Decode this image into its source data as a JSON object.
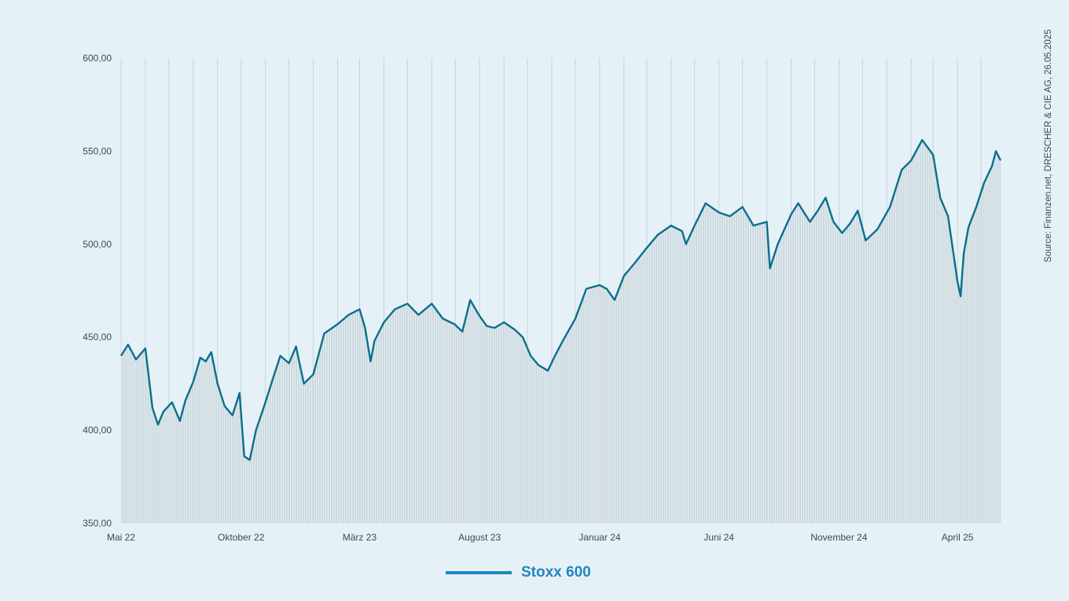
{
  "chart_data": {
    "type": "line",
    "title": "",
    "xlabel": "",
    "ylabel": "",
    "ylim": [
      350,
      600
    ],
    "y_ticks": [
      "350,00",
      "400,00",
      "450,00",
      "500,00",
      "550,00",
      "600,00"
    ],
    "y_tick_values": [
      350,
      400,
      450,
      500,
      550,
      600
    ],
    "x_ticks": [
      "Mai 22",
      "Oktober 22",
      "März 23",
      "August 23",
      "Januar 24",
      "Juni 24",
      "November 24",
      "April 25"
    ],
    "x_tick_dates": [
      "2022-05-01",
      "2022-10-01",
      "2023-03-01",
      "2023-08-01",
      "2024-01-01",
      "2024-06-01",
      "2024-11-01",
      "2025-04-01"
    ],
    "x_range": [
      "2022-05-01",
      "2025-05-26"
    ],
    "grid": "vertical monthly lines",
    "legend_position": "bottom-center",
    "series": [
      {
        "name": "Stoxx 600",
        "color": "#0b6f8c",
        "fill_color": "#c9d6dc",
        "x": [
          "2022-05-01",
          "2022-05-10",
          "2022-05-20",
          "2022-06-01",
          "2022-06-10",
          "2022-06-17",
          "2022-06-24",
          "2022-07-05",
          "2022-07-15",
          "2022-07-22",
          "2022-08-01",
          "2022-08-10",
          "2022-08-17",
          "2022-08-24",
          "2022-09-01",
          "2022-09-10",
          "2022-09-20",
          "2022-09-29",
          "2022-10-05",
          "2022-10-12",
          "2022-10-20",
          "2022-11-01",
          "2022-11-10",
          "2022-11-20",
          "2022-12-01",
          "2022-12-10",
          "2022-12-20",
          "2023-01-01",
          "2023-01-15",
          "2023-02-01",
          "2023-02-15",
          "2023-03-01",
          "2023-03-08",
          "2023-03-15",
          "2023-03-20",
          "2023-04-01",
          "2023-04-15",
          "2023-05-01",
          "2023-05-15",
          "2023-06-01",
          "2023-06-15",
          "2023-06-30",
          "2023-07-10",
          "2023-07-20",
          "2023-07-31",
          "2023-08-10",
          "2023-08-20",
          "2023-09-01",
          "2023-09-15",
          "2023-09-25",
          "2023-10-05",
          "2023-10-15",
          "2023-10-27",
          "2023-11-05",
          "2023-11-15",
          "2023-12-01",
          "2023-12-15",
          "2024-01-01",
          "2024-01-10",
          "2024-01-20",
          "2024-02-01",
          "2024-02-15",
          "2024-03-01",
          "2024-03-15",
          "2024-04-01",
          "2024-04-15",
          "2024-04-20",
          "2024-05-01",
          "2024-05-15",
          "2024-06-01",
          "2024-06-15",
          "2024-07-01",
          "2024-07-15",
          "2024-08-01",
          "2024-08-05",
          "2024-08-15",
          "2024-09-01",
          "2024-09-10",
          "2024-09-25",
          "2024-10-05",
          "2024-10-15",
          "2024-10-25",
          "2024-11-05",
          "2024-11-15",
          "2024-11-25",
          "2024-12-05",
          "2024-12-20",
          "2025-01-05",
          "2025-01-20",
          "2025-02-01",
          "2025-02-15",
          "2025-03-01",
          "2025-03-10",
          "2025-03-20",
          "2025-04-01",
          "2025-04-05",
          "2025-04-09",
          "2025-04-15",
          "2025-04-25",
          "2025-05-05",
          "2025-05-15",
          "2025-05-20",
          "2025-05-26"
        ],
        "values": [
          440,
          446,
          438,
          444,
          412,
          403,
          410,
          415,
          405,
          416,
          426,
          439,
          437,
          442,
          425,
          413,
          408,
          420,
          386,
          384,
          400,
          415,
          427,
          440,
          436,
          445,
          425,
          430,
          452,
          457,
          462,
          465,
          455,
          437,
          448,
          458,
          465,
          468,
          462,
          468,
          460,
          457,
          453,
          470,
          462,
          456,
          455,
          458,
          454,
          450,
          440,
          435,
          432,
          440,
          448,
          460,
          476,
          478,
          476,
          470,
          483,
          490,
          498,
          505,
          510,
          507,
          500,
          510,
          522,
          517,
          515,
          520,
          510,
          512,
          487,
          500,
          516,
          522,
          512,
          518,
          525,
          512,
          506,
          511,
          518,
          502,
          508,
          520,
          540,
          545,
          556,
          548,
          525,
          515,
          480,
          472,
          495,
          509,
          520,
          533,
          542,
          550,
          545
        ]
      }
    ],
    "source": "Source: Finanzen.net, DRESCHER & CIE AG, 26.05.2025"
  }
}
